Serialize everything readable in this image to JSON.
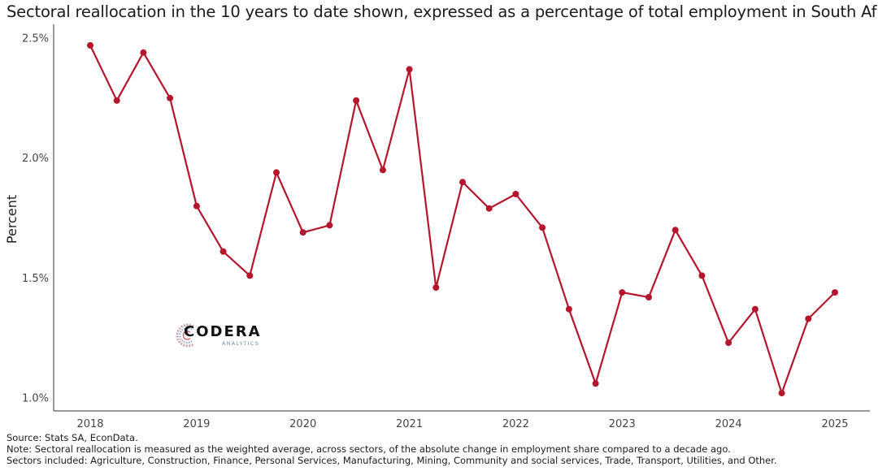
{
  "chart_data": {
    "type": "line",
    "title": "Sectoral reallocation in the 10 years to date shown, expressed as a percentage of total employment in South Africa",
    "xlabel": "",
    "ylabel": "Percent",
    "x_ticks": [
      "2018",
      "2019",
      "2020",
      "2021",
      "2022",
      "2023",
      "2024",
      "2025"
    ],
    "y_ticks": [
      "1.0%",
      "1.5%",
      "2.0%",
      "2.5%"
    ],
    "y_tick_values": [
      1.0,
      1.5,
      2.0,
      2.5
    ],
    "ylim": [
      0.95,
      2.53
    ],
    "xlim": [
      "2017Q4",
      "2025Q1"
    ],
    "grid": false,
    "color": "#b5162c",
    "series": [
      {
        "x": [
          "2018Q1",
          "2018Q2",
          "2018Q3",
          "2018Q4",
          "2019Q1",
          "2019Q2",
          "2019Q3",
          "2019Q4",
          "2020Q1",
          "2020Q2",
          "2020Q3",
          "2020Q4",
          "2021Q1",
          "2021Q2",
          "2021Q3",
          "2021Q4",
          "2022Q1",
          "2022Q2",
          "2022Q3",
          "2022Q4",
          "2023Q1",
          "2023Q2",
          "2023Q3",
          "2023Q4",
          "2024Q1",
          "2024Q2",
          "2024Q3",
          "2024Q4",
          "2025Q1"
        ],
        "values": [
          2.47,
          2.24,
          2.44,
          2.25,
          1.8,
          1.61,
          1.51,
          1.94,
          1.69,
          1.72,
          2.24,
          1.95,
          2.37,
          1.46,
          1.9,
          1.79,
          1.85,
          1.71,
          1.37,
          1.06,
          1.44,
          1.42,
          1.7,
          1.51,
          1.23,
          1.37,
          1.02,
          1.33,
          1.44
        ]
      }
    ]
  },
  "footnotes": {
    "source": "Source: Stats SA, EconData.",
    "note": "Note: Sectoral reallocation is measured as the weighted average, across sectors, of the absolute change in employment share compared to a decade ago.",
    "sectors": "Sectors included: Agriculture, Construction, Finance, Personal Services, Manufacturing, Mining, Community and social services, Trade, Transport, Utilities, and Other."
  },
  "logo": {
    "name": "CODERA",
    "tagline": "ANALYTICS"
  }
}
